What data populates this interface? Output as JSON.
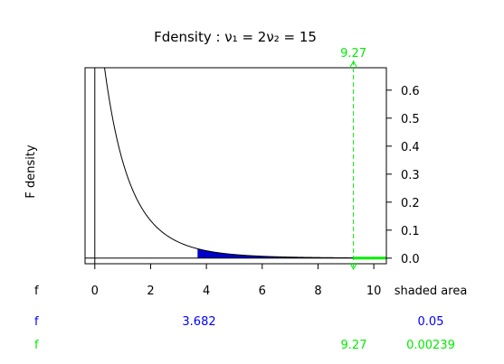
{
  "chart_data": {
    "type": "area",
    "title": "Fdensity : ν₁ = 2ν₂ = 15",
    "ylabel": "F density",
    "distribution": {
      "df1": 2,
      "df2": 15
    },
    "xlim": [
      -0.35,
      10.45
    ],
    "ylim": [
      -0.02,
      0.68
    ],
    "x_ticks": [
      0,
      2,
      4,
      6,
      8,
      10
    ],
    "x_tick_labels": [
      "0",
      "2",
      "4",
      "6",
      "8",
      "10"
    ],
    "y_ticks": [
      0,
      0.1,
      0.2,
      0.3,
      0.4,
      0.5,
      0.6
    ],
    "y_tick_labels": [
      "0.0",
      "0.1",
      "0.2",
      "0.3",
      "0.4",
      "0.5",
      "0.6"
    ],
    "y_axis_side": "right",
    "grid": false,
    "series": [
      {
        "color": "#0000cc",
        "shade_from": 3.682,
        "shaded_area": "0.05"
      },
      {
        "color": "#00ee00",
        "shade_from": 9.27,
        "shaded_area": "0.00239"
      }
    ],
    "marker_line": {
      "x": 9.27,
      "label": "9.27",
      "color": "#00ee00"
    },
    "readout_header": {
      "f_label": "f",
      "area_label": "shaded area"
    },
    "readout_rows": [
      {
        "f_label": "f",
        "f_value": "3.682",
        "area": "0.05",
        "color": "#0000ff"
      },
      {
        "f_label": "f",
        "f_value": "9.27",
        "area": "0.00239",
        "color": "#00ee00"
      }
    ]
  }
}
